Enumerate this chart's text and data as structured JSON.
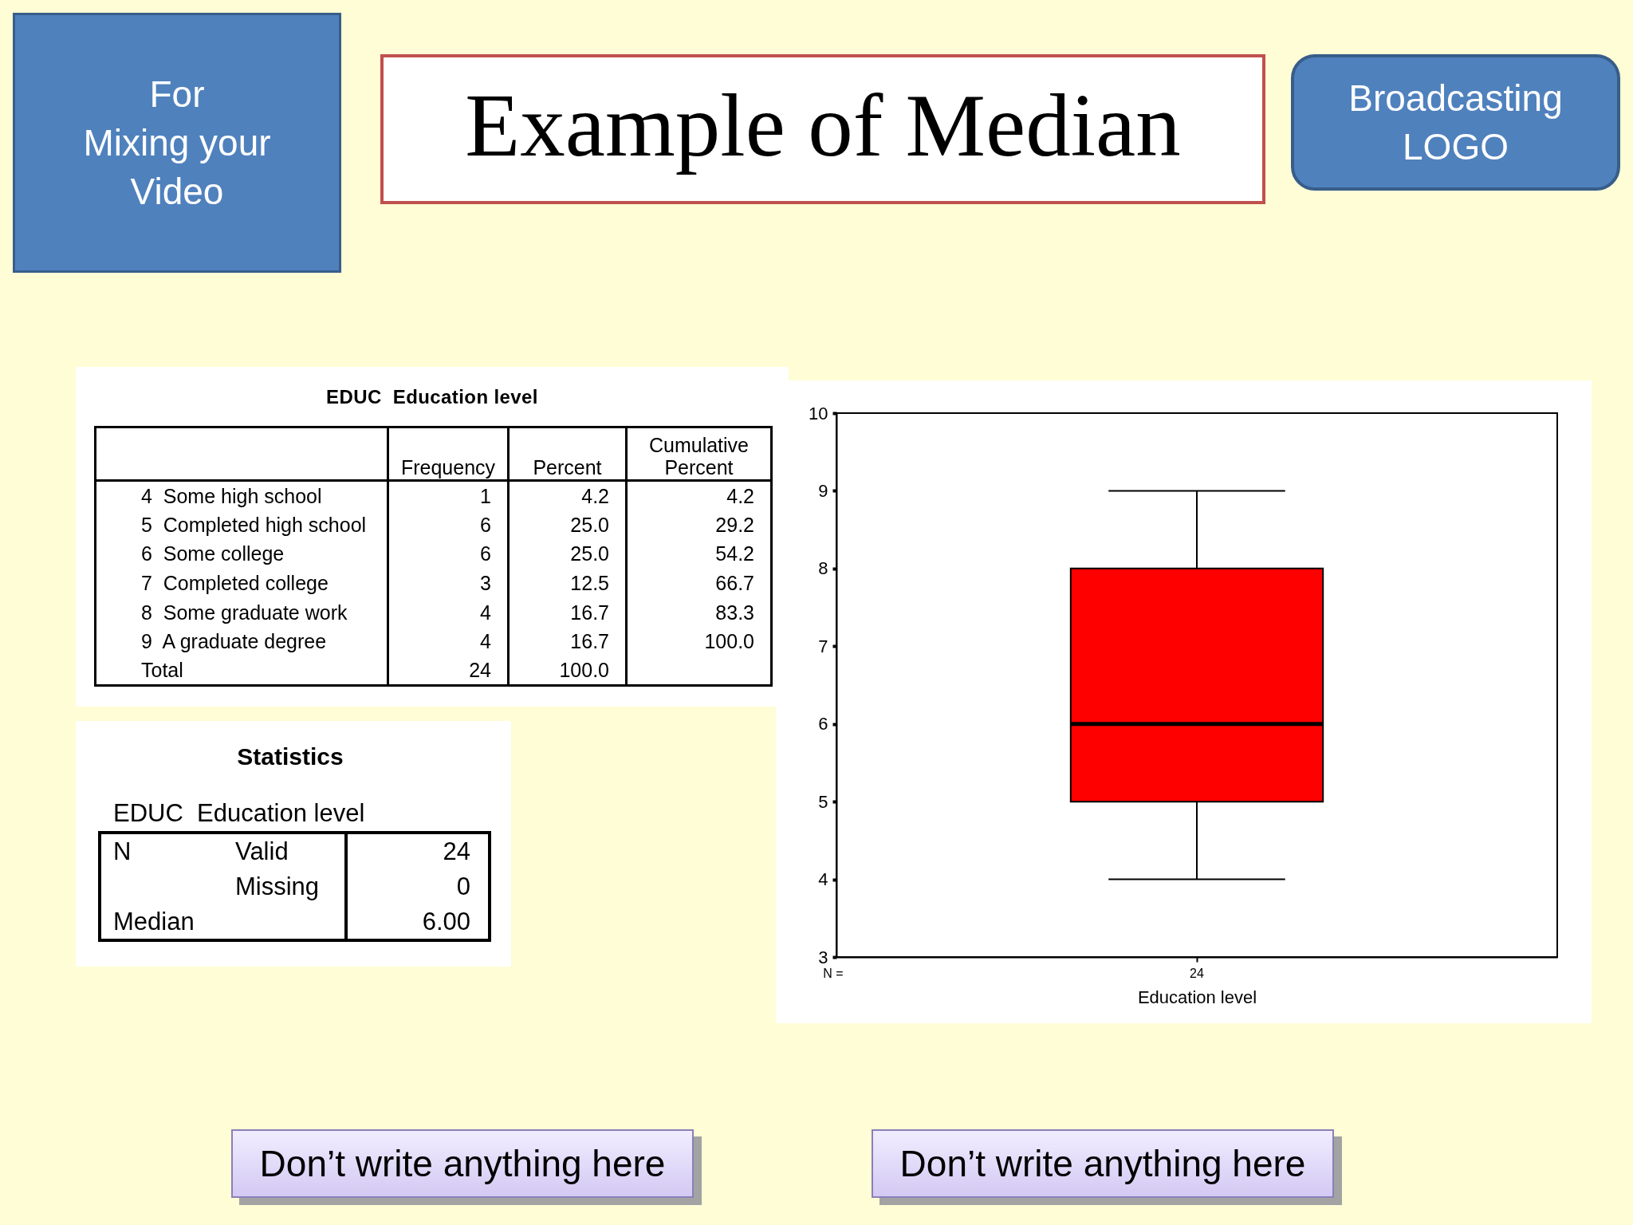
{
  "chart_data": [
    {
      "type": "other",
      "title": "Example of Median",
      "annotations": [
        "For\nMixing your Video",
        "Broadcasting LOGO",
        "Don’t write anything here",
        "Don’t write anything here"
      ]
    },
    {
      "type": "other",
      "title": "EDUC  Education level",
      "categories": [
        "4  Some high school",
        "5  Completed high school",
        "6  Some college",
        "7  Completed college",
        "8  Some graduate work",
        "9  A graduate degree",
        "Total"
      ],
      "series": [
        {
          "name": "Frequency",
          "values": [
            1,
            6,
            6,
            3,
            4,
            4,
            24
          ],
          "value_labels": [
            "1",
            "6",
            "6",
            "3",
            "4",
            "4",
            "24"
          ]
        },
        {
          "name": "Percent",
          "values": [
            4.2,
            25,
            25,
            12.5,
            16.7,
            16.7,
            100
          ],
          "value_labels": [
            "4.2",
            "25.0",
            "25.0",
            "12.5",
            "16.7",
            "16.7",
            "100.0"
          ]
        },
        {
          "name": "Cumulative Percent",
          "values": [
            4.2,
            29.2,
            54.2,
            66.7,
            83.3,
            100,
            null
          ],
          "value_labels": [
            "4.2",
            "29.2",
            "54.2",
            "66.7",
            "83.3",
            "100.0",
            null
          ]
        }
      ]
    },
    {
      "type": "other",
      "title": "Statistics",
      "subtitle": "EDUC  Education level",
      "y_categories": [
        "N",
        null,
        null
      ],
      "categories": [
        "Valid",
        "Missing",
        "Median"
      ],
      "values": [
        24,
        0,
        6
      ],
      "value_labels": [
        "24",
        "0",
        "6.00"
      ]
    },
    {
      "type": "box",
      "categories": [
        "24"
      ],
      "boxes": [
        {
          "low": 4,
          "q1": 5,
          "median": 6,
          "q3": 8,
          "high": 9
        }
      ],
      "color": "#ff0000",
      "xlabel": "Education level",
      "ylim": [
        3,
        10
      ],
      "yticks": [
        3,
        4,
        5,
        6,
        7,
        8,
        9,
        10
      ],
      "annotations": [
        "N ="
      ]
    }
  ]
}
